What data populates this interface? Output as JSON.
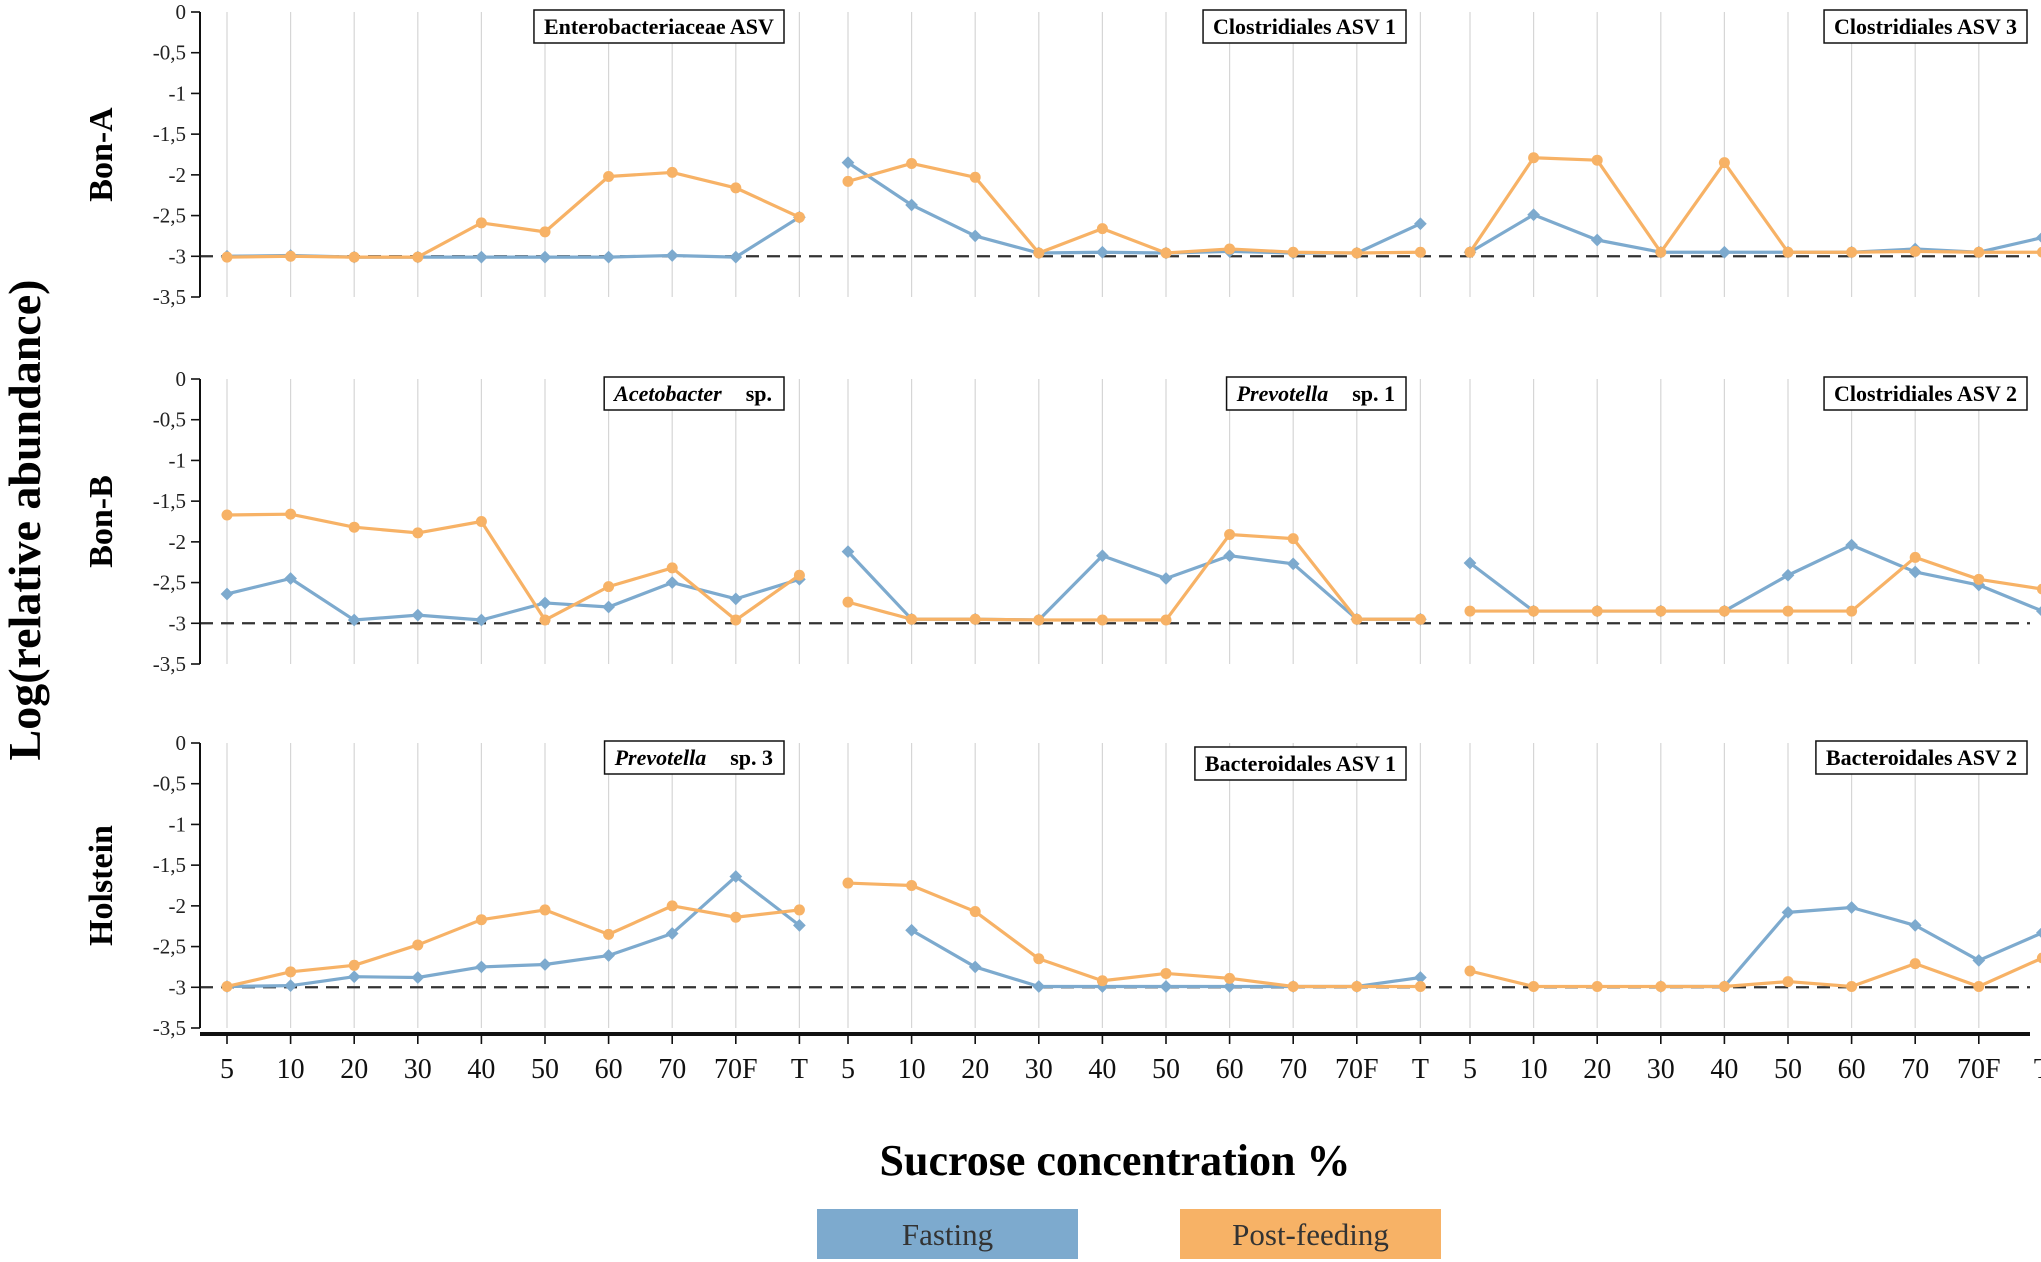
{
  "chart_data": {
    "type": "line",
    "title": "",
    "ylabel": "Log(relative abundance)",
    "xlabel": "Sucrose concentration %",
    "ylim": [
      -3.5,
      0
    ],
    "yticks": [
      0,
      -0.5,
      -1,
      -1.5,
      -2,
      -2.5,
      -3,
      -3.5
    ],
    "ytick_labels": [
      "0",
      "-0,5",
      "-1",
      "-1,5",
      "-2",
      "-2,5",
      "-3",
      "-3,5"
    ],
    "categories": [
      "5",
      "10",
      "20",
      "30",
      "40",
      "50",
      "60",
      "70",
      "70F",
      "T"
    ],
    "reference_line": -3,
    "grid": "vertical",
    "row_labels": [
      "Bon-A",
      "Bon-B",
      "Holstein"
    ],
    "legend": {
      "position": "bottom-center",
      "entries": [
        {
          "name": "Fasting",
          "color": "#7daace"
        },
        {
          "name": "Post-feeding",
          "color": "#f7b266"
        }
      ]
    },
    "series_colors": {
      "Fasting": "#7daace",
      "Post-feeding": "#f7b266"
    },
    "panels": [
      {
        "row": 0,
        "col": 0,
        "title_plain": "Enterobacteriaceae ASV",
        "title_italic": "",
        "series": [
          {
            "name": "Fasting",
            "values": [
              -3.0,
              -2.99,
              -3.01,
              -3.01,
              -3.01,
              -3.01,
              -3.01,
              -2.99,
              -3.01,
              -2.52
            ]
          },
          {
            "name": "Post-feeding",
            "values": [
              -3.01,
              -3.0,
              -3.01,
              -3.01,
              -2.59,
              -2.7,
              -2.02,
              -1.97,
              -2.16,
              -2.52
            ]
          }
        ]
      },
      {
        "row": 0,
        "col": 1,
        "title_plain": "Clostridiales ASV 1",
        "title_italic": "",
        "series": [
          {
            "name": "Fasting",
            "values": [
              -1.85,
              -2.37,
              -2.75,
              -2.96,
              -2.95,
              -2.96,
              -2.94,
              -2.96,
              -2.96,
              -2.6
            ]
          },
          {
            "name": "Post-feeding",
            "values": [
              -2.08,
              -1.86,
              -2.03,
              -2.96,
              -2.66,
              -2.96,
              -2.91,
              -2.95,
              -2.96,
              -2.95
            ]
          }
        ]
      },
      {
        "row": 0,
        "col": 2,
        "title_plain": "Clostridiales ASV 3",
        "title_italic": "",
        "series": [
          {
            "name": "Fasting",
            "values": [
              -2.95,
              -2.49,
              -2.8,
              -2.95,
              -2.95,
              -2.95,
              -2.95,
              -2.91,
              -2.95,
              -2.77
            ]
          },
          {
            "name": "Post-feeding",
            "values": [
              -2.95,
              -1.79,
              -1.82,
              -2.95,
              -1.85,
              -2.95,
              -2.95,
              -2.94,
              -2.95,
              -2.95
            ]
          }
        ]
      },
      {
        "row": 1,
        "col": 0,
        "title_plain": "sp.",
        "title_italic": "Acetobacter",
        "series": [
          {
            "name": "Fasting",
            "values": [
              -2.64,
              -2.45,
              -2.96,
              -2.9,
              -2.96,
              -2.75,
              -2.8,
              -2.5,
              -2.7,
              -2.46
            ]
          },
          {
            "name": "Post-feeding",
            "values": [
              -1.67,
              -1.66,
              -1.82,
              -1.89,
              -1.75,
              -2.96,
              -2.55,
              -2.32,
              -2.96,
              -2.41
            ]
          }
        ]
      },
      {
        "row": 1,
        "col": 1,
        "title_plain": "sp. 1",
        "title_italic": "Prevotella",
        "series": [
          {
            "name": "Fasting",
            "values": [
              -2.12,
              -2.95,
              -2.95,
              -2.96,
              -2.17,
              -2.45,
              -2.17,
              -2.27,
              -2.95,
              -2.95
            ]
          },
          {
            "name": "Post-feeding",
            "values": [
              -2.74,
              -2.95,
              -2.95,
              -2.96,
              -2.96,
              -2.96,
              -1.91,
              -1.96,
              -2.95,
              -2.95
            ]
          }
        ]
      },
      {
        "row": 1,
        "col": 2,
        "title_plain": "Clostridiales ASV 2",
        "title_italic": "",
        "series": [
          {
            "name": "Fasting",
            "values": [
              -2.26,
              -2.85,
              -2.85,
              -2.85,
              -2.85,
              -2.41,
              -2.04,
              -2.37,
              -2.53,
              -2.85
            ]
          },
          {
            "name": "Post-feeding",
            "values": [
              -2.85,
              -2.85,
              -2.85,
              -2.85,
              -2.85,
              -2.85,
              -2.85,
              -2.19,
              -2.46,
              -2.58
            ]
          }
        ]
      },
      {
        "row": 2,
        "col": 0,
        "title_plain": "sp. 3",
        "title_italic": "Prevotella",
        "series": [
          {
            "name": "Fasting",
            "values": [
              -2.99,
              -2.98,
              -2.87,
              -2.88,
              -2.75,
              -2.72,
              -2.61,
              -2.34,
              -1.64,
              -2.24
            ]
          },
          {
            "name": "Post-feeding",
            "values": [
              -2.99,
              -2.81,
              -2.73,
              -2.48,
              -2.17,
              -2.05,
              -2.35,
              -2.0,
              -2.14,
              -2.05
            ]
          }
        ]
      },
      {
        "row": 2,
        "col": 1,
        "title_plain": "Bacteroidales ASV 1",
        "title_italic": "",
        "series": [
          {
            "name": "Fasting",
            "values": [
              null,
              -2.3,
              -2.75,
              -2.99,
              -2.99,
              -2.99,
              -2.99,
              -2.99,
              -2.99,
              -2.88
            ]
          },
          {
            "name": "Post-feeding",
            "values": [
              -1.72,
              -1.75,
              -2.07,
              -2.65,
              -2.92,
              -2.83,
              -2.89,
              -2.99,
              -2.99,
              -2.99
            ]
          }
        ]
      },
      {
        "row": 2,
        "col": 2,
        "title_plain": "Bacteroidales ASV 2",
        "title_italic": "",
        "series": [
          {
            "name": "Fasting",
            "values": [
              null,
              null,
              null,
              -2.99,
              -2.99,
              -2.08,
              -2.02,
              -2.24,
              -2.67,
              -2.33
            ]
          },
          {
            "name": "Post-feeding",
            "values": [
              -2.8,
              -2.99,
              -2.99,
              -2.99,
              -2.99,
              -2.93,
              -2.99,
              -2.71,
              -2.99,
              -2.64
            ]
          }
        ]
      }
    ]
  }
}
